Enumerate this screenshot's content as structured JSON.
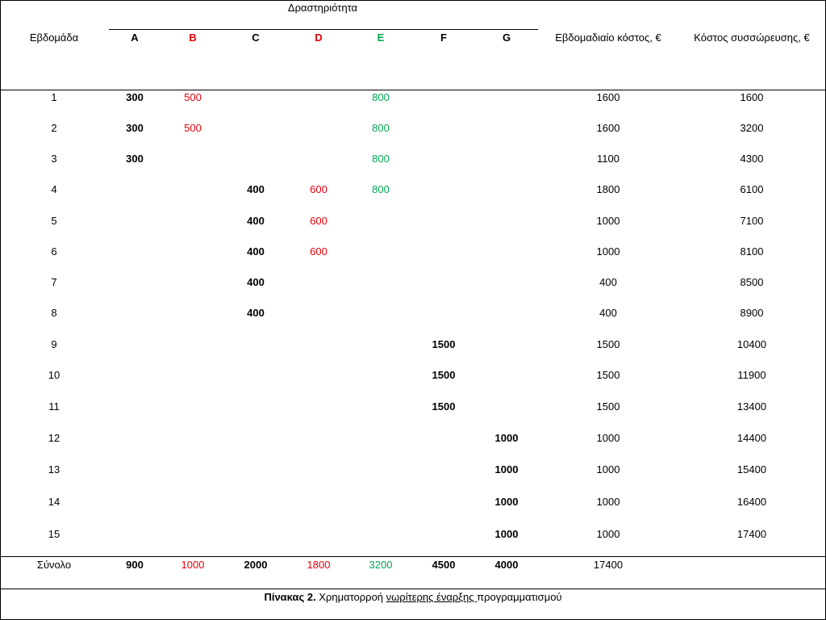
{
  "table": {
    "header": {
      "group_label": "Δραστηριότητα",
      "week_label": "Εβδομάδα",
      "activities": [
        {
          "label": "A",
          "color": "#000000",
          "bold": true
        },
        {
          "label": "B",
          "color": "#e8000b",
          "bold": false
        },
        {
          "label": "C",
          "color": "#000000",
          "bold": true
        },
        {
          "label": "D",
          "color": "#e8000b",
          "bold": false
        },
        {
          "label": "E",
          "color": "#00a651",
          "bold": false
        },
        {
          "label": "F",
          "color": "#000000",
          "bold": true
        },
        {
          "label": "G",
          "color": "#000000",
          "bold": true
        }
      ],
      "weekly_cost_label": "Εβδομαδιαίο κόστος, €",
      "cumulative_cost_label": "Κόστος συσσώρευσης, €"
    },
    "rows": [
      {
        "week": "1",
        "cells": [
          "300",
          "500",
          "",
          "",
          "800",
          "",
          ""
        ],
        "weekly": "1600",
        "cumulative": "1600"
      },
      {
        "week": "2",
        "cells": [
          "300",
          "500",
          "",
          "",
          "800",
          "",
          ""
        ],
        "weekly": "1600",
        "cumulative": "3200"
      },
      {
        "week": "3",
        "cells": [
          "300",
          "",
          "",
          "",
          "800",
          "",
          ""
        ],
        "weekly": "1100",
        "cumulative": "4300"
      },
      {
        "week": "4",
        "cells": [
          "",
          "",
          "400",
          "600",
          "800",
          "",
          ""
        ],
        "weekly": "1800",
        "cumulative": "6100"
      },
      {
        "week": "5",
        "cells": [
          "",
          "",
          "400",
          "600",
          "",
          "",
          ""
        ],
        "weekly": "1000",
        "cumulative": "7100"
      },
      {
        "week": "6",
        "cells": [
          "",
          "",
          "400",
          "600",
          "",
          "",
          ""
        ],
        "weekly": "1000",
        "cumulative": "8100"
      },
      {
        "week": "7",
        "cells": [
          "",
          "",
          "400",
          "",
          "",
          "",
          ""
        ],
        "weekly": "400",
        "cumulative": "8500"
      },
      {
        "week": "8",
        "cells": [
          "",
          "",
          "400",
          "",
          "",
          "",
          ""
        ],
        "weekly": "400",
        "cumulative": "8900"
      },
      {
        "week": "9",
        "cells": [
          "",
          "",
          "",
          "",
          "",
          "1500",
          ""
        ],
        "weekly": "1500",
        "cumulative": "10400"
      },
      {
        "week": "10",
        "cells": [
          "",
          "",
          "",
          "",
          "",
          "1500",
          ""
        ],
        "weekly": "1500",
        "cumulative": "11900"
      },
      {
        "week": "11",
        "cells": [
          "",
          "",
          "",
          "",
          "",
          "1500",
          ""
        ],
        "weekly": "1500",
        "cumulative": "13400"
      },
      {
        "week": "12",
        "cells": [
          "",
          "",
          "",
          "",
          "",
          "",
          "1000"
        ],
        "weekly": "1000",
        "cumulative": "14400"
      },
      {
        "week": "13",
        "cells": [
          "",
          "",
          "",
          "",
          "",
          "",
          "1000"
        ],
        "weekly": "1000",
        "cumulative": "15400"
      },
      {
        "week": "14",
        "cells": [
          "",
          "",
          "",
          "",
          "",
          "",
          "1000"
        ],
        "weekly": "1000",
        "cumulative": "16400"
      },
      {
        "week": "15",
        "cells": [
          "",
          "",
          "",
          "",
          "",
          "",
          "1000"
        ],
        "weekly": "1000",
        "cumulative": "17400"
      }
    ],
    "total": {
      "label": "Σύνολο",
      "cells": [
        "900",
        "1000",
        "2000",
        "1800",
        "3200",
        "4500",
        "4000"
      ],
      "weekly": "17400"
    }
  },
  "caption": {
    "bold": "Πίνακας 2.",
    "text_1": " Χρηματορροή ",
    "underlined": "νωρίτερης έναρξης ",
    "text_2": "προγραμματισμού"
  }
}
